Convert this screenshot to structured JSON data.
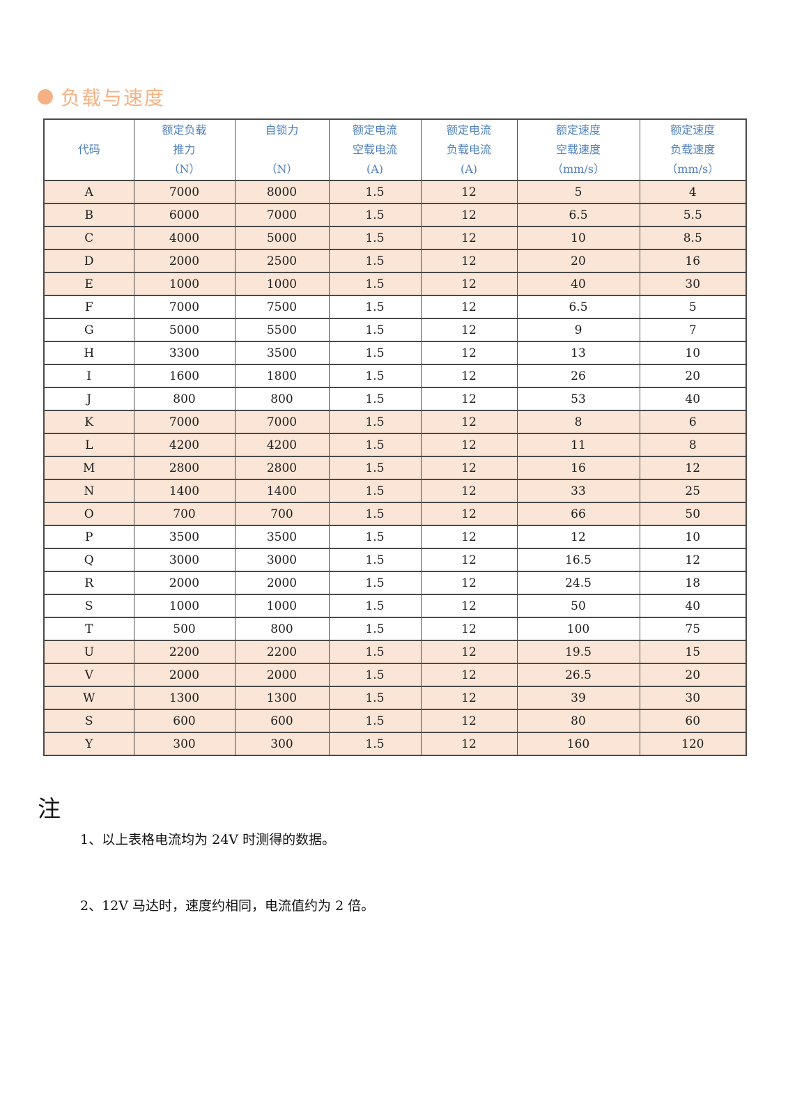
{
  "page": {
    "section_title": "负载与速度",
    "colors": {
      "accent": "#f4b183",
      "header_text": "#4f81bd",
      "row_highlight": "#fbe5d6",
      "table_border": "#4a4a4a"
    }
  },
  "table": {
    "columns": [
      {
        "lines": [
          "",
          "代码",
          ""
        ]
      },
      {
        "lines": [
          "额定负载",
          "推力",
          "（N）"
        ]
      },
      {
        "lines": [
          "自锁力",
          "",
          "（N）"
        ]
      },
      {
        "lines": [
          "额定电流",
          "空载电流",
          "(A)"
        ]
      },
      {
        "lines": [
          "额定电流",
          "负载电流",
          "(A)"
        ]
      },
      {
        "lines": [
          "额定速度",
          "空载速度",
          "（mm/s）"
        ]
      },
      {
        "lines": [
          "额定速度",
          "负载速度",
          "（mm/s）"
        ]
      }
    ],
    "rows": [
      {
        "code": "A",
        "values": [
          "7000",
          "8000",
          "1.5",
          "12",
          "5",
          "4"
        ],
        "highlight": true
      },
      {
        "code": "B",
        "values": [
          "6000",
          "7000",
          "1.5",
          "12",
          "6.5",
          "5.5"
        ],
        "highlight": true
      },
      {
        "code": "C",
        "values": [
          "4000",
          "5000",
          "1.5",
          "12",
          "10",
          "8.5"
        ],
        "highlight": true
      },
      {
        "code": "D",
        "values": [
          "2000",
          "2500",
          "1.5",
          "12",
          "20",
          "16"
        ],
        "highlight": true
      },
      {
        "code": "E",
        "values": [
          "1000",
          "1000",
          "1.5",
          "12",
          "40",
          "30"
        ],
        "highlight": true
      },
      {
        "code": "F",
        "values": [
          "7000",
          "7500",
          "1.5",
          "12",
          "6.5",
          "5"
        ],
        "highlight": false
      },
      {
        "code": "G",
        "values": [
          "5000",
          "5500",
          "1.5",
          "12",
          "9",
          "7"
        ],
        "highlight": false
      },
      {
        "code": "H",
        "values": [
          "3300",
          "3500",
          "1.5",
          "12",
          "13",
          "10"
        ],
        "highlight": false
      },
      {
        "code": "I",
        "values": [
          "1600",
          "1800",
          "1.5",
          "12",
          "26",
          "20"
        ],
        "highlight": false
      },
      {
        "code": "J",
        "values": [
          "800",
          "800",
          "1.5",
          "12",
          "53",
          "40"
        ],
        "highlight": false
      },
      {
        "code": "K",
        "values": [
          "7000",
          "7000",
          "1.5",
          "12",
          "8",
          "6"
        ],
        "highlight": true
      },
      {
        "code": "L",
        "values": [
          "4200",
          "4200",
          "1.5",
          "12",
          "11",
          "8"
        ],
        "highlight": true
      },
      {
        "code": "M",
        "values": [
          "2800",
          "2800",
          "1.5",
          "12",
          "16",
          "12"
        ],
        "highlight": true
      },
      {
        "code": "N",
        "values": [
          "1400",
          "1400",
          "1.5",
          "12",
          "33",
          "25"
        ],
        "highlight": true
      },
      {
        "code": "O",
        "values": [
          "700",
          "700",
          "1.5",
          "12",
          "66",
          "50"
        ],
        "highlight": true
      },
      {
        "code": "P",
        "values": [
          "3500",
          "3500",
          "1.5",
          "12",
          "12",
          "10"
        ],
        "highlight": false
      },
      {
        "code": "Q",
        "values": [
          "3000",
          "3000",
          "1.5",
          "12",
          "16.5",
          "12"
        ],
        "highlight": false
      },
      {
        "code": "R",
        "values": [
          "2000",
          "2000",
          "1.5",
          "12",
          "24.5",
          "18"
        ],
        "highlight": false
      },
      {
        "code": "S",
        "values": [
          "1000",
          "1000",
          "1.5",
          "12",
          "50",
          "40"
        ],
        "highlight": false
      },
      {
        "code": "T",
        "values": [
          "500",
          "800",
          "1.5",
          "12",
          "100",
          "75"
        ],
        "highlight": false
      },
      {
        "code": "U",
        "values": [
          "2200",
          "2200",
          "1.5",
          "12",
          "19.5",
          "15"
        ],
        "highlight": true
      },
      {
        "code": "V",
        "values": [
          "2000",
          "2000",
          "1.5",
          "12",
          "26.5",
          "20"
        ],
        "highlight": true
      },
      {
        "code": "W",
        "values": [
          "1300",
          "1300",
          "1.5",
          "12",
          "39",
          "30"
        ],
        "highlight": true
      },
      {
        "code": "S",
        "values": [
          "600",
          "600",
          "1.5",
          "12",
          "80",
          "60"
        ],
        "highlight": true
      },
      {
        "code": "Y",
        "values": [
          "300",
          "300",
          "1.5",
          "12",
          "160",
          "120"
        ],
        "highlight": true
      }
    ]
  },
  "notes": {
    "heading": "注",
    "items": [
      "1、以上表格电流均为 24V 时测得的数据。",
      "2、12V 马达时，速度约相同，电流值约为 2 倍。"
    ]
  }
}
